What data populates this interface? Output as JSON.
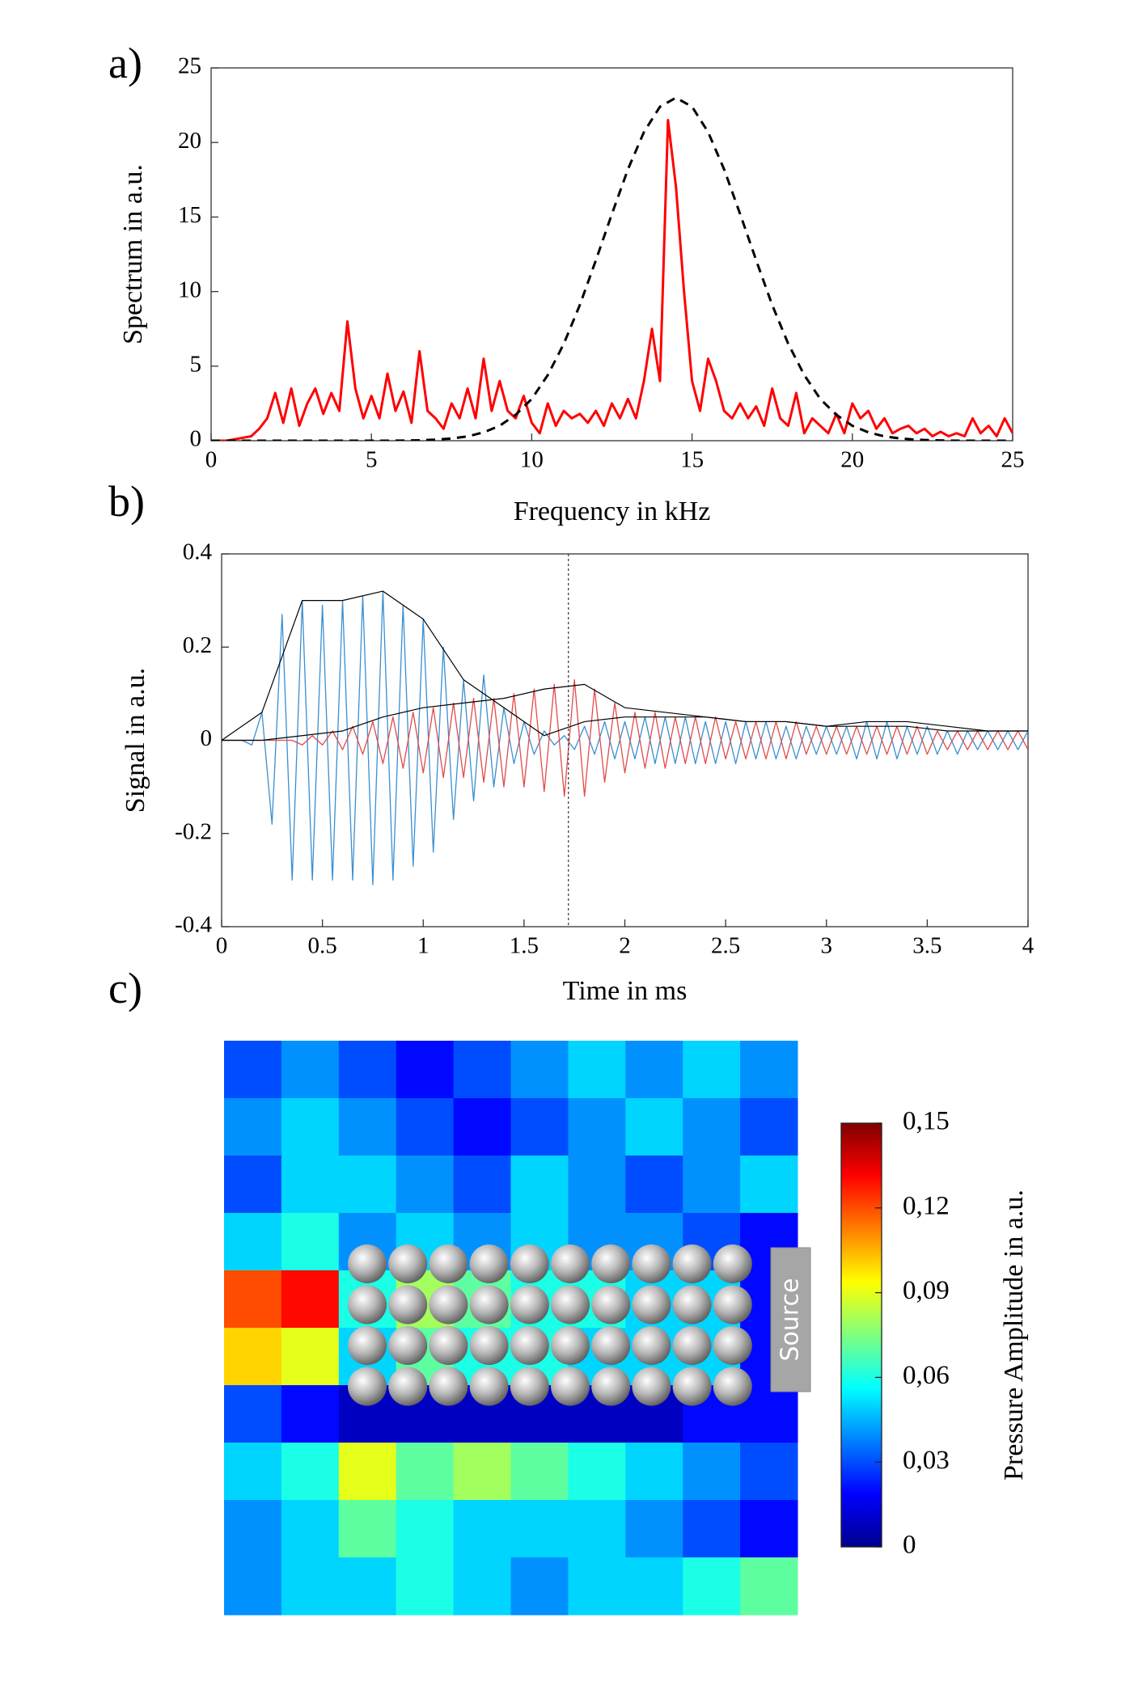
{
  "chart_data": [
    {
      "type": "line",
      "panel": "a)",
      "xlabel": "Frequency in kHz",
      "ylabel": "Spectrum in a.u.",
      "xlim": [
        0,
        25
      ],
      "xticks": [
        0,
        5,
        10,
        15,
        20,
        25
      ],
      "ylim": [
        0,
        25
      ],
      "yticks": [
        0,
        5,
        10,
        15,
        20,
        25
      ],
      "series": [
        {
          "color": "#ff0000",
          "dash": false,
          "x": [
            0,
            0.25,
            0.5,
            0.75,
            1,
            1.25,
            1.5,
            1.75,
            2,
            2.25,
            2.5,
            2.75,
            3,
            3.25,
            3.5,
            3.75,
            4,
            4.25,
            4.5,
            4.75,
            5,
            5.25,
            5.5,
            5.75,
            6,
            6.25,
            6.5,
            6.75,
            7,
            7.25,
            7.5,
            7.75,
            8,
            8.25,
            8.5,
            8.75,
            9,
            9.25,
            9.5,
            9.75,
            10,
            10.25,
            10.5,
            10.75,
            11,
            11.25,
            11.5,
            11.75,
            12,
            12.25,
            12.5,
            12.75,
            13,
            13.25,
            13.5,
            13.75,
            14,
            14.25,
            14.5,
            14.75,
            15,
            15.25,
            15.5,
            15.75,
            16,
            16.25,
            16.5,
            16.75,
            17,
            17.25,
            17.5,
            17.75,
            18,
            18.25,
            18.5,
            18.75,
            19,
            19.25,
            19.5,
            19.75,
            20,
            20.25,
            20.5,
            20.75,
            21,
            21.25,
            21.5,
            21.75,
            22,
            22.25,
            22.5,
            22.75,
            23,
            23.25,
            23.5,
            23.75,
            24,
            24.25,
            24.5,
            24.75,
            25
          ],
          "values": [
            0,
            0,
            0,
            0.1,
            0.2,
            0.3,
            0.8,
            1.5,
            3.2,
            1.2,
            3.5,
            1,
            2.5,
            3.5,
            1.8,
            3.2,
            2,
            8,
            3.5,
            1.5,
            3,
            1.5,
            4.5,
            2,
            3.3,
            1.2,
            6,
            2,
            1.5,
            0.8,
            2.5,
            1.5,
            3.5,
            1.5,
            5.5,
            2,
            4,
            2,
            1.5,
            3,
            1.2,
            0.5,
            2.5,
            1,
            2,
            1.5,
            1.8,
            1.2,
            2,
            1,
            2.5,
            1.5,
            2.8,
            1.5,
            4,
            7.5,
            4,
            21.5,
            17,
            10,
            4,
            2,
            5.5,
            4,
            2,
            1.5,
            2.5,
            1.5,
            2.3,
            1,
            3.5,
            1.5,
            1,
            3.2,
            0.5,
            1.5,
            1,
            0.5,
            1.8,
            0.5,
            2.5,
            1.5,
            2,
            0.8,
            1.5,
            0.5,
            0.8,
            1,
            0.5,
            0.8,
            0.3,
            0.6,
            0.3,
            0.5,
            0.3,
            1.5,
            0.5,
            1,
            0.3,
            1.5,
            0.5
          ]
        },
        {
          "color": "#000000",
          "dash": true,
          "x": [
            0,
            0.5,
            1,
            1.5,
            2,
            2.5,
            3,
            3.5,
            4,
            4.5,
            5,
            5.5,
            6,
            6.5,
            7,
            7.5,
            8,
            8.5,
            9,
            9.5,
            10,
            10.5,
            11,
            11.5,
            12,
            12.5,
            13,
            13.5,
            14,
            14.5,
            15,
            15.5,
            16,
            16.5,
            17,
            17.5,
            18,
            18.5,
            19,
            19.5,
            20,
            20.5,
            21,
            21.5,
            22,
            22.5,
            23,
            23.5,
            24,
            24.5,
            25
          ],
          "values": [
            0,
            0,
            0,
            0,
            0,
            0,
            0,
            0,
            0,
            0,
            0,
            0,
            0.01,
            0.03,
            0.07,
            0.15,
            0.29,
            0.56,
            1,
            1.74,
            2.8,
            4.4,
            6.5,
            9.1,
            12.1,
            15.2,
            18.2,
            20.7,
            22.4,
            23,
            22.4,
            20.7,
            18.2,
            15.2,
            12.1,
            9.1,
            6.5,
            4.4,
            2.8,
            1.74,
            1,
            0.56,
            0.29,
            0.15,
            0.07,
            0.03,
            0.01,
            0,
            0,
            0,
            0
          ]
        }
      ]
    },
    {
      "type": "line",
      "panel": "b)",
      "xlabel": "Time in ms",
      "ylabel": "Signal in a.u.",
      "xlim": [
        0,
        4
      ],
      "xticks": [
        0,
        0.5,
        1,
        1.5,
        2,
        2.5,
        3,
        3.5,
        4
      ],
      "ylim": [
        -0.4,
        0.4
      ],
      "yticks": [
        -0.4,
        -0.2,
        0,
        0.2,
        0.4
      ],
      "vline": 1.72,
      "series": [
        {
          "color": "#3a8fd0",
          "dash": false,
          "x": [
            0,
            0.05,
            0.1,
            0.15,
            0.2,
            0.25,
            0.3,
            0.35,
            0.4,
            0.45,
            0.5,
            0.55,
            0.6,
            0.65,
            0.7,
            0.75,
            0.8,
            0.85,
            0.9,
            0.95,
            1,
            1.05,
            1.1,
            1.15,
            1.2,
            1.25,
            1.3,
            1.35,
            1.4,
            1.45,
            1.5,
            1.55,
            1.6,
            1.65,
            1.7,
            1.75,
            1.8,
            1.85,
            1.9,
            1.95,
            2,
            2.05,
            2.1,
            2.15,
            2.2,
            2.25,
            2.3,
            2.35,
            2.4,
            2.45,
            2.5,
            2.55,
            2.6,
            2.65,
            2.7,
            2.75,
            2.8,
            2.85,
            2.9,
            2.95,
            3,
            3.05,
            3.1,
            3.15,
            3.2,
            3.25,
            3.3,
            3.35,
            3.4,
            3.45,
            3.5,
            3.55,
            3.6,
            3.65,
            3.7,
            3.75,
            3.8,
            3.85,
            3.9,
            3.95,
            4
          ],
          "values": [
            0,
            0,
            0,
            -0.01,
            0.06,
            -0.18,
            0.27,
            -0.3,
            0.3,
            -0.3,
            0.29,
            -0.3,
            0.3,
            -0.3,
            0.31,
            -0.31,
            0.32,
            -0.3,
            0.29,
            -0.27,
            0.26,
            -0.24,
            0.2,
            -0.17,
            0.13,
            -0.13,
            0.14,
            -0.1,
            0.07,
            -0.05,
            0.04,
            -0.03,
            0.02,
            -0.01,
            0.01,
            -0.02,
            0.03,
            -0.03,
            0.04,
            -0.04,
            0.04,
            -0.04,
            0.05,
            -0.05,
            0.05,
            -0.05,
            0.05,
            -0.05,
            0.04,
            -0.05,
            0.04,
            -0.05,
            0.04,
            -0.04,
            0.04,
            -0.04,
            0.03,
            -0.04,
            0.03,
            -0.03,
            0.03,
            -0.03,
            0.03,
            -0.04,
            0.04,
            -0.04,
            0.04,
            -0.04,
            0.03,
            -0.03,
            0.03,
            -0.03,
            0.02,
            -0.03,
            0.02,
            -0.02,
            0.02,
            -0.02,
            0.02,
            -0.02,
            0.02
          ]
        },
        {
          "color": "#e24a4a",
          "dash": false,
          "x": [
            0,
            0.05,
            0.1,
            0.15,
            0.2,
            0.25,
            0.3,
            0.35,
            0.4,
            0.45,
            0.5,
            0.55,
            0.6,
            0.65,
            0.7,
            0.75,
            0.8,
            0.85,
            0.9,
            0.95,
            1,
            1.05,
            1.1,
            1.15,
            1.2,
            1.25,
            1.3,
            1.35,
            1.4,
            1.45,
            1.5,
            1.55,
            1.6,
            1.65,
            1.7,
            1.75,
            1.8,
            1.85,
            1.9,
            1.95,
            2,
            2.05,
            2.1,
            2.15,
            2.2,
            2.25,
            2.3,
            2.35,
            2.4,
            2.45,
            2.5,
            2.55,
            2.6,
            2.65,
            2.7,
            2.75,
            2.8,
            2.85,
            2.9,
            2.95,
            3,
            3.05,
            3.1,
            3.15,
            3.2,
            3.25,
            3.3,
            3.35,
            3.4,
            3.45,
            3.5,
            3.55,
            3.6,
            3.65,
            3.7,
            3.75,
            3.8,
            3.85,
            3.9,
            3.95,
            4
          ],
          "values": [
            0,
            0,
            0,
            0,
            0,
            0,
            0,
            0,
            -0.01,
            0.01,
            -0.01,
            0.02,
            -0.02,
            0.03,
            -0.03,
            0.04,
            -0.05,
            0.05,
            -0.06,
            0.06,
            -0.07,
            0.07,
            -0.08,
            0.08,
            -0.08,
            0.09,
            -0.09,
            0.09,
            -0.1,
            0.1,
            -0.1,
            0.11,
            -0.11,
            0.12,
            -0.12,
            0.13,
            -0.12,
            0.11,
            -0.09,
            0.08,
            -0.07,
            0.06,
            -0.06,
            0.06,
            -0.06,
            0.05,
            -0.05,
            0.05,
            -0.05,
            0.05,
            -0.04,
            0.04,
            -0.04,
            0.04,
            -0.04,
            0.04,
            -0.04,
            0.04,
            -0.03,
            0.03,
            -0.03,
            0.03,
            -0.03,
            0.03,
            -0.03,
            0.03,
            -0.03,
            0.03,
            -0.03,
            0.03,
            -0.03,
            0.02,
            -0.02,
            0.02,
            -0.02,
            0.02,
            -0.02,
            0.02,
            -0.02,
            0.02,
            -0.02
          ]
        },
        {
          "color": "#000000",
          "dash": false,
          "x": [
            0,
            0.2,
            0.4,
            0.6,
            0.8,
            1,
            1.2,
            1.4,
            1.6,
            1.8,
            2,
            2.2,
            2.4,
            2.6,
            2.8,
            3,
            3.2,
            3.4,
            3.6,
            3.8,
            4
          ],
          "values": [
            0,
            0.06,
            0.3,
            0.3,
            0.32,
            0.26,
            0.13,
            0.07,
            0.01,
            0.04,
            0.05,
            0.05,
            0.05,
            0.04,
            0.04,
            0.03,
            0.04,
            0.04,
            0.03,
            0.02,
            0.02
          ]
        },
        {
          "color": "#000000",
          "dash": false,
          "x": [
            0,
            0.2,
            0.4,
            0.6,
            0.8,
            1,
            1.2,
            1.4,
            1.6,
            1.8,
            2,
            2.2,
            2.4,
            2.6,
            2.8,
            3,
            3.2,
            3.4,
            3.6,
            3.8,
            4
          ],
          "values": [
            0,
            0,
            0.01,
            0.02,
            0.05,
            0.07,
            0.08,
            0.09,
            0.11,
            0.12,
            0.07,
            0.06,
            0.05,
            0.04,
            0.04,
            0.03,
            0.03,
            0.03,
            0.02,
            0.02,
            0.02
          ]
        }
      ]
    },
    {
      "type": "heatmap",
      "panel": "c)",
      "colorbar_label": "Pressure Amplitude in a.u.",
      "annotation": "Source",
      "clim": [
        0,
        0.15
      ],
      "cticks": [
        0,
        {
          "value": 0.03,
          "label": "0,03"
        },
        {
          "value": 0.06,
          "label": "0,06"
        },
        {
          "value": 0.09,
          "label": "0,09"
        },
        {
          "value": 0.12,
          "label": "0,12"
        },
        {
          "value": 0.15,
          "label": "0,15"
        }
      ],
      "values": [
        [
          0.03,
          0.04,
          0.03,
          0.02,
          0.03,
          0.04,
          0.05,
          0.04,
          0.05,
          0.04
        ],
        [
          0.04,
          0.05,
          0.04,
          0.03,
          0.02,
          0.03,
          0.04,
          0.05,
          0.04,
          0.03
        ],
        [
          0.03,
          0.05,
          0.05,
          0.04,
          0.03,
          0.05,
          0.04,
          0.03,
          0.04,
          0.05
        ],
        [
          0.05,
          0.06,
          0.04,
          0.05,
          0.04,
          0.05,
          0.04,
          0.04,
          0.03,
          0.02
        ],
        [
          0.12,
          0.13,
          0.06,
          0.08,
          0.07,
          0.06,
          0.06,
          0.05,
          0.05,
          0.02
        ],
        [
          0.1,
          0.09,
          0.05,
          0.07,
          0.06,
          0.06,
          0.05,
          0.05,
          0.05,
          0.02
        ],
        [
          0.03,
          0.02,
          0.01,
          0.01,
          0.01,
          0.01,
          0.01,
          0.01,
          0.02,
          0.02
        ],
        [
          0.05,
          0.06,
          0.09,
          0.07,
          0.08,
          0.07,
          0.06,
          0.05,
          0.04,
          0.03
        ],
        [
          0.04,
          0.05,
          0.07,
          0.06,
          0.05,
          0.05,
          0.05,
          0.04,
          0.03,
          0.02
        ],
        [
          0.04,
          0.05,
          0.05,
          0.06,
          0.05,
          0.04,
          0.05,
          0.05,
          0.06,
          0.07
        ]
      ]
    }
  ]
}
